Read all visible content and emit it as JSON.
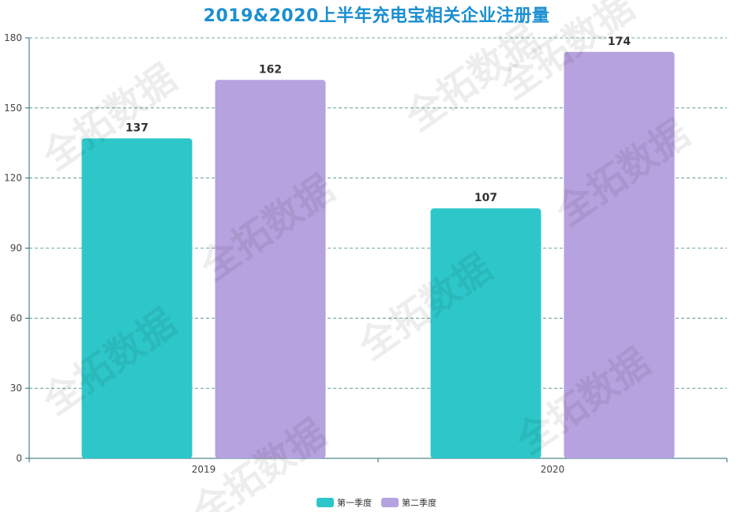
{
  "chart_data": {
    "type": "bar",
    "title": "2019&2020上半年充电宝相关企业注册量",
    "categories": [
      "2019",
      "2020"
    ],
    "series": [
      {
        "name": "第一季度",
        "values": [
          137,
          107
        ],
        "color": "#2ec7c9"
      },
      {
        "name": "第二季度",
        "values": [
          162,
          174
        ],
        "color": "#b6a2de"
      }
    ],
    "ylim": [
      0,
      180
    ],
    "yticks": [
      0,
      30,
      60,
      90,
      120,
      150,
      180
    ],
    "grid": true,
    "legend_position": "bottom-center"
  },
  "watermark": "全拓数据"
}
